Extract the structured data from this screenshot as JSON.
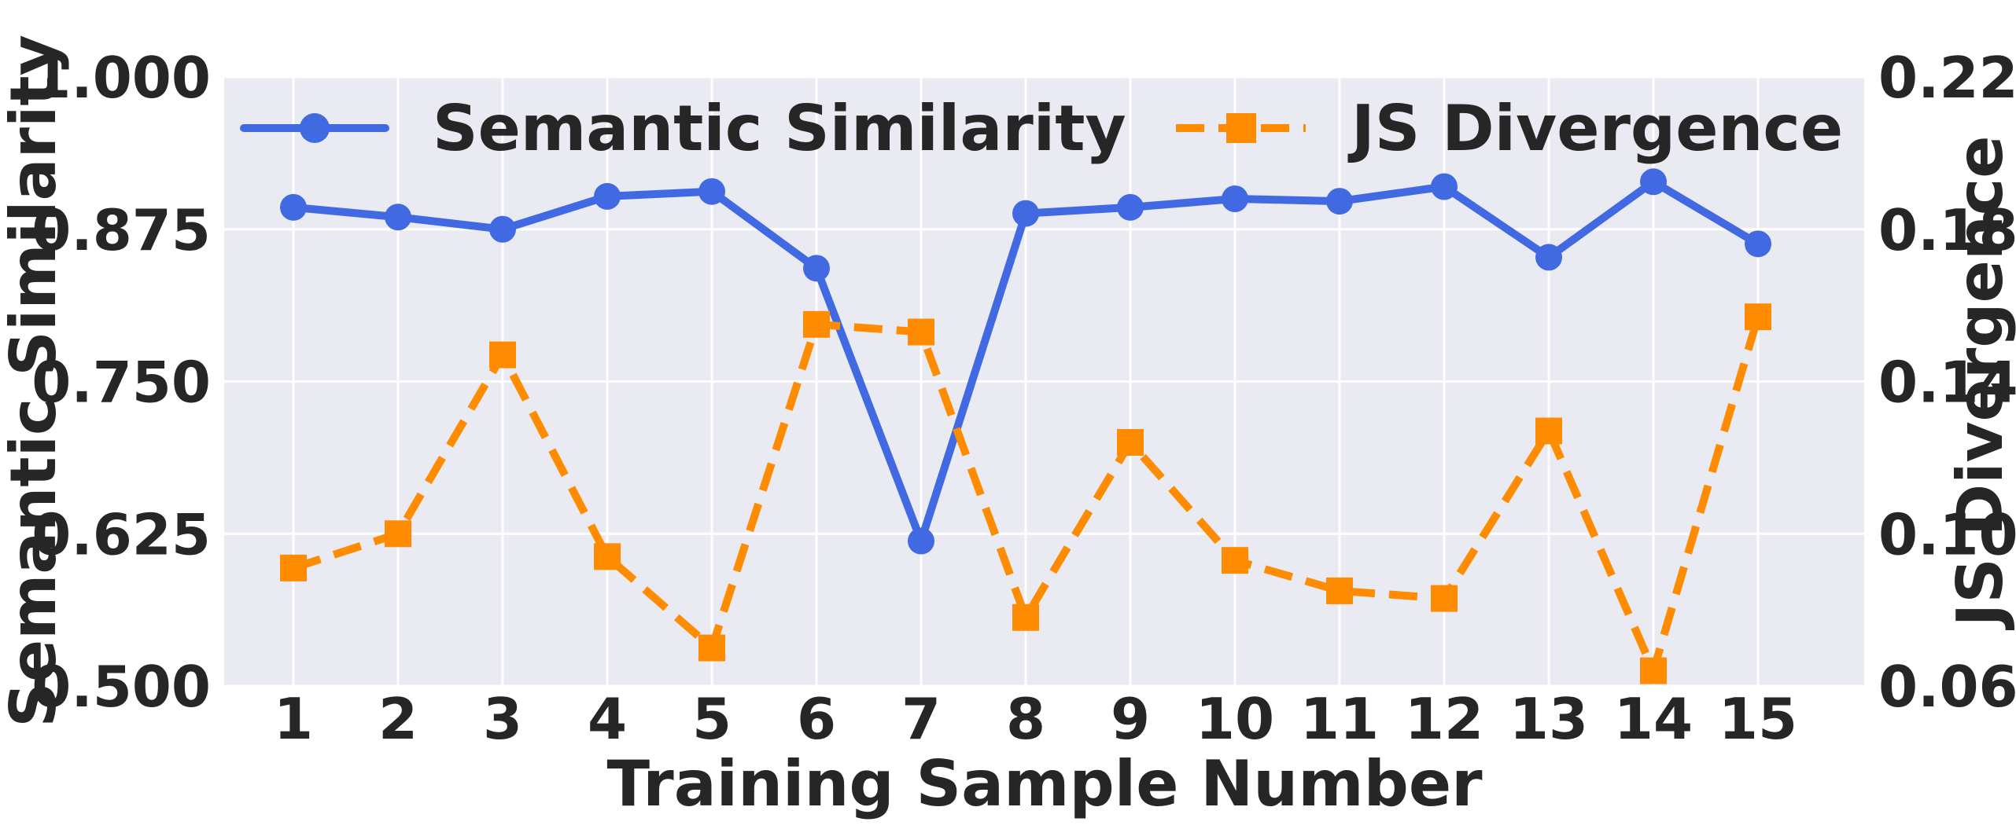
{
  "chart_data": {
    "type": "line",
    "xlabel": "Training Sample Number",
    "ylabel_left": "Semantic Similarity",
    "ylabel_right": "JS Divergence",
    "x": [
      1,
      2,
      3,
      4,
      5,
      6,
      7,
      8,
      9,
      10,
      11,
      12,
      13,
      14,
      15
    ],
    "x_tick_labels": [
      "1",
      "2",
      "3",
      "4",
      "5",
      "6",
      "7",
      "8",
      "9",
      "10",
      "11",
      "12",
      "13",
      "14",
      "15"
    ],
    "ylim_left": [
      0.5,
      1.0
    ],
    "yticks_left": [
      "0.500",
      "0.625",
      "0.750",
      "0.875",
      "1.000"
    ],
    "ylim_right": [
      0.06,
      0.22
    ],
    "yticks_right": [
      "0.06",
      "0.10",
      "0.14",
      "0.18",
      "0.22"
    ],
    "grid": true,
    "legend_position": "top",
    "series": [
      {
        "name": "Semantic Similarity",
        "axis": "left",
        "color": "#4169E1",
        "marker": "circle",
        "line_style": "solid",
        "values": [
          0.893,
          0.885,
          0.875,
          0.902,
          0.906,
          0.843,
          0.619,
          0.888,
          0.893,
          0.9,
          0.898,
          0.91,
          0.852,
          0.914,
          0.863
        ]
      },
      {
        "name": "JS Divergence",
        "axis": "right",
        "color": "#FF8C00",
        "marker": "square",
        "line_style": "dashed",
        "values": [
          0.091,
          0.1,
          0.147,
          0.094,
          0.07,
          0.155,
          0.153,
          0.078,
          0.124,
          0.093,
          0.085,
          0.083,
          0.127,
          0.064,
          0.157
        ]
      }
    ]
  }
}
